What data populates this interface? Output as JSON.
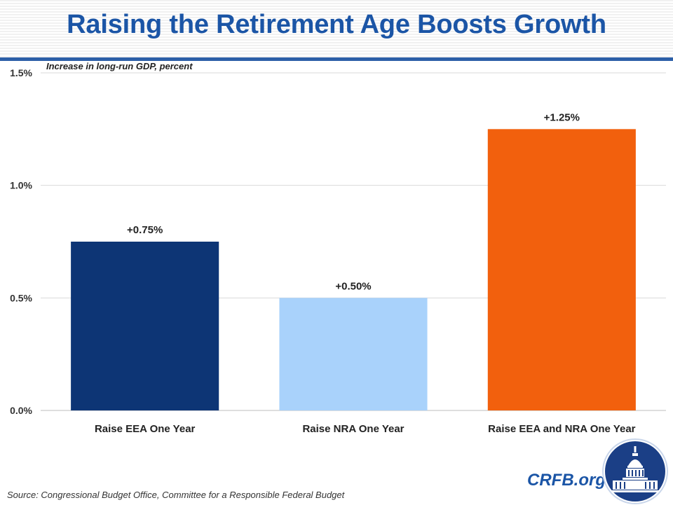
{
  "title": "Raising the Retirement Age Boosts Growth",
  "source": "Source: Congressional Budget Office, Committee for a Responsible Federal Budget",
  "brand": "CRFB.org",
  "colors": {
    "title": "#1b55a6",
    "bar_eea": "#0d3575",
    "bar_nra": "#a9d2fb",
    "bar_both": "#f2600d"
  },
  "chart_data": {
    "type": "bar",
    "ylabel": "Increase in long-run GDP, percent",
    "categories": [
      "Raise EEA One Year",
      "Raise NRA One Year",
      "Raise EEA and NRA One Year"
    ],
    "values": [
      0.75,
      0.5,
      1.25
    ],
    "data_labels": [
      "+0.75%",
      "+0.50%",
      "+1.25%"
    ],
    "ylim": [
      0,
      1.5
    ],
    "yticks": [
      0,
      0.5,
      1.0,
      1.5
    ],
    "ytick_labels": [
      "0.0%",
      "0.5%",
      "1.0%",
      "1.5%"
    ],
    "grid": true,
    "legend": "none"
  }
}
